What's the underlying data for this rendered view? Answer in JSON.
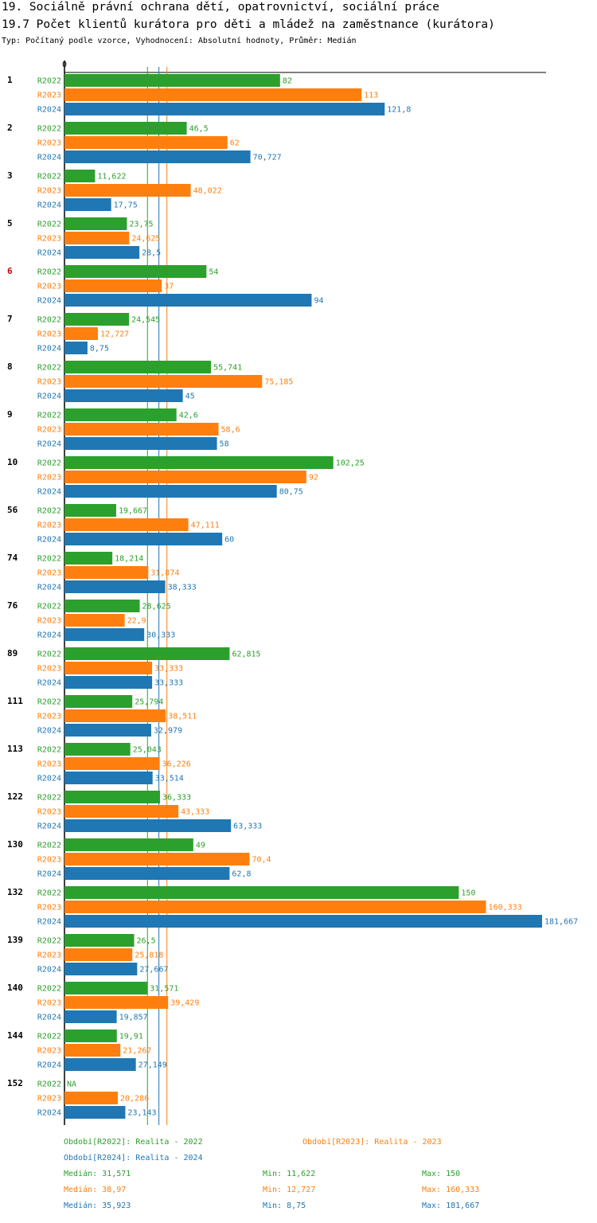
{
  "title_line1": "19. Sociálně právní ochrana dětí, opatrovnictví, sociální práce",
  "title_line2": "19.7 Počet klientů kurátora pro děti a mládež na zaměstnance (kurátora)",
  "subtitle": "Typ: Počítaný podle vzorce, Vyhodnocení: Absolutní hodnoty, Průměr: Medián",
  "colors": {
    "R2022": "#2ca02c",
    "R2023": "#ff7f0e",
    "R2024": "#1f77b4",
    "highlight": "#cc0000",
    "text": "#000000"
  },
  "chart_data": {
    "type": "bar",
    "orientation": "horizontal",
    "axis_zero_label": "0",
    "series_names": [
      "R2022",
      "R2023",
      "R2024"
    ],
    "groups": [
      {
        "label": "1",
        "highlight": false,
        "values": [
          "82",
          "113",
          "121,8"
        ]
      },
      {
        "label": "2",
        "highlight": false,
        "values": [
          "46,5",
          "62",
          "70,727"
        ]
      },
      {
        "label": "3",
        "highlight": false,
        "values": [
          "11,622",
          "48,022",
          "17,75"
        ]
      },
      {
        "label": "5",
        "highlight": false,
        "values": [
          "23,75",
          "24,625",
          "28,5"
        ]
      },
      {
        "label": "6",
        "highlight": true,
        "values": [
          "54",
          "37",
          "94"
        ]
      },
      {
        "label": "7",
        "highlight": false,
        "values": [
          "24,545",
          "12,727",
          "8,75"
        ]
      },
      {
        "label": "8",
        "highlight": false,
        "values": [
          "55,741",
          "75,185",
          "45"
        ]
      },
      {
        "label": "9",
        "highlight": false,
        "values": [
          "42,6",
          "58,6",
          "58"
        ]
      },
      {
        "label": "10",
        "highlight": false,
        "values": [
          "102,25",
          "92",
          "80,75"
        ]
      },
      {
        "label": "56",
        "highlight": false,
        "values": [
          "19,667",
          "47,111",
          "60"
        ]
      },
      {
        "label": "74",
        "highlight": false,
        "values": [
          "18,214",
          "31,874",
          "38,333"
        ]
      },
      {
        "label": "76",
        "highlight": false,
        "values": [
          "28,625",
          "22,9",
          "30,333"
        ]
      },
      {
        "label": "89",
        "highlight": false,
        "values": [
          "62,815",
          "33,333",
          "33,333"
        ]
      },
      {
        "label": "111",
        "highlight": false,
        "values": [
          "25,794",
          "38,511",
          "32,979"
        ]
      },
      {
        "label": "113",
        "highlight": false,
        "values": [
          "25,043",
          "36,226",
          "33,514"
        ]
      },
      {
        "label": "122",
        "highlight": false,
        "values": [
          "36,333",
          "43,333",
          "63,333"
        ]
      },
      {
        "label": "130",
        "highlight": false,
        "values": [
          "49",
          "70,4",
          "62,8"
        ]
      },
      {
        "label": "132",
        "highlight": false,
        "values": [
          "150",
          "160,333",
          "181,667"
        ]
      },
      {
        "label": "139",
        "highlight": false,
        "values": [
          "26,5",
          "25,818",
          "27,667"
        ]
      },
      {
        "label": "140",
        "highlight": false,
        "values": [
          "31,571",
          "39,429",
          "19,857"
        ]
      },
      {
        "label": "144",
        "highlight": false,
        "values": [
          "19,91",
          "21,267",
          "27,149"
        ]
      },
      {
        "label": "152",
        "highlight": false,
        "values": [
          "NA",
          "20,286",
          "23,143"
        ]
      }
    ],
    "medians": [
      "31,571",
      "38,97",
      "35,923"
    ],
    "x_max": 181.667
  },
  "legend": {
    "period_R2022": "Období[R2022]: Realita - 2022",
    "period_R2023": "Období[R2023]: Realita - 2023",
    "period_R2024": "Období[R2024]: Realita - 2024",
    "stats": [
      {
        "series": "R2022",
        "median": "Medián: 31,571",
        "min": "Min: 11,622",
        "max": "Max: 150"
      },
      {
        "series": "R2023",
        "median": "Medián: 38,97",
        "min": "Min: 12,727",
        "max": "Max: 160,333"
      },
      {
        "series": "R2024",
        "median": "Medián: 35,923",
        "min": "Min: 8,75",
        "max": "Max: 181,667"
      }
    ]
  }
}
